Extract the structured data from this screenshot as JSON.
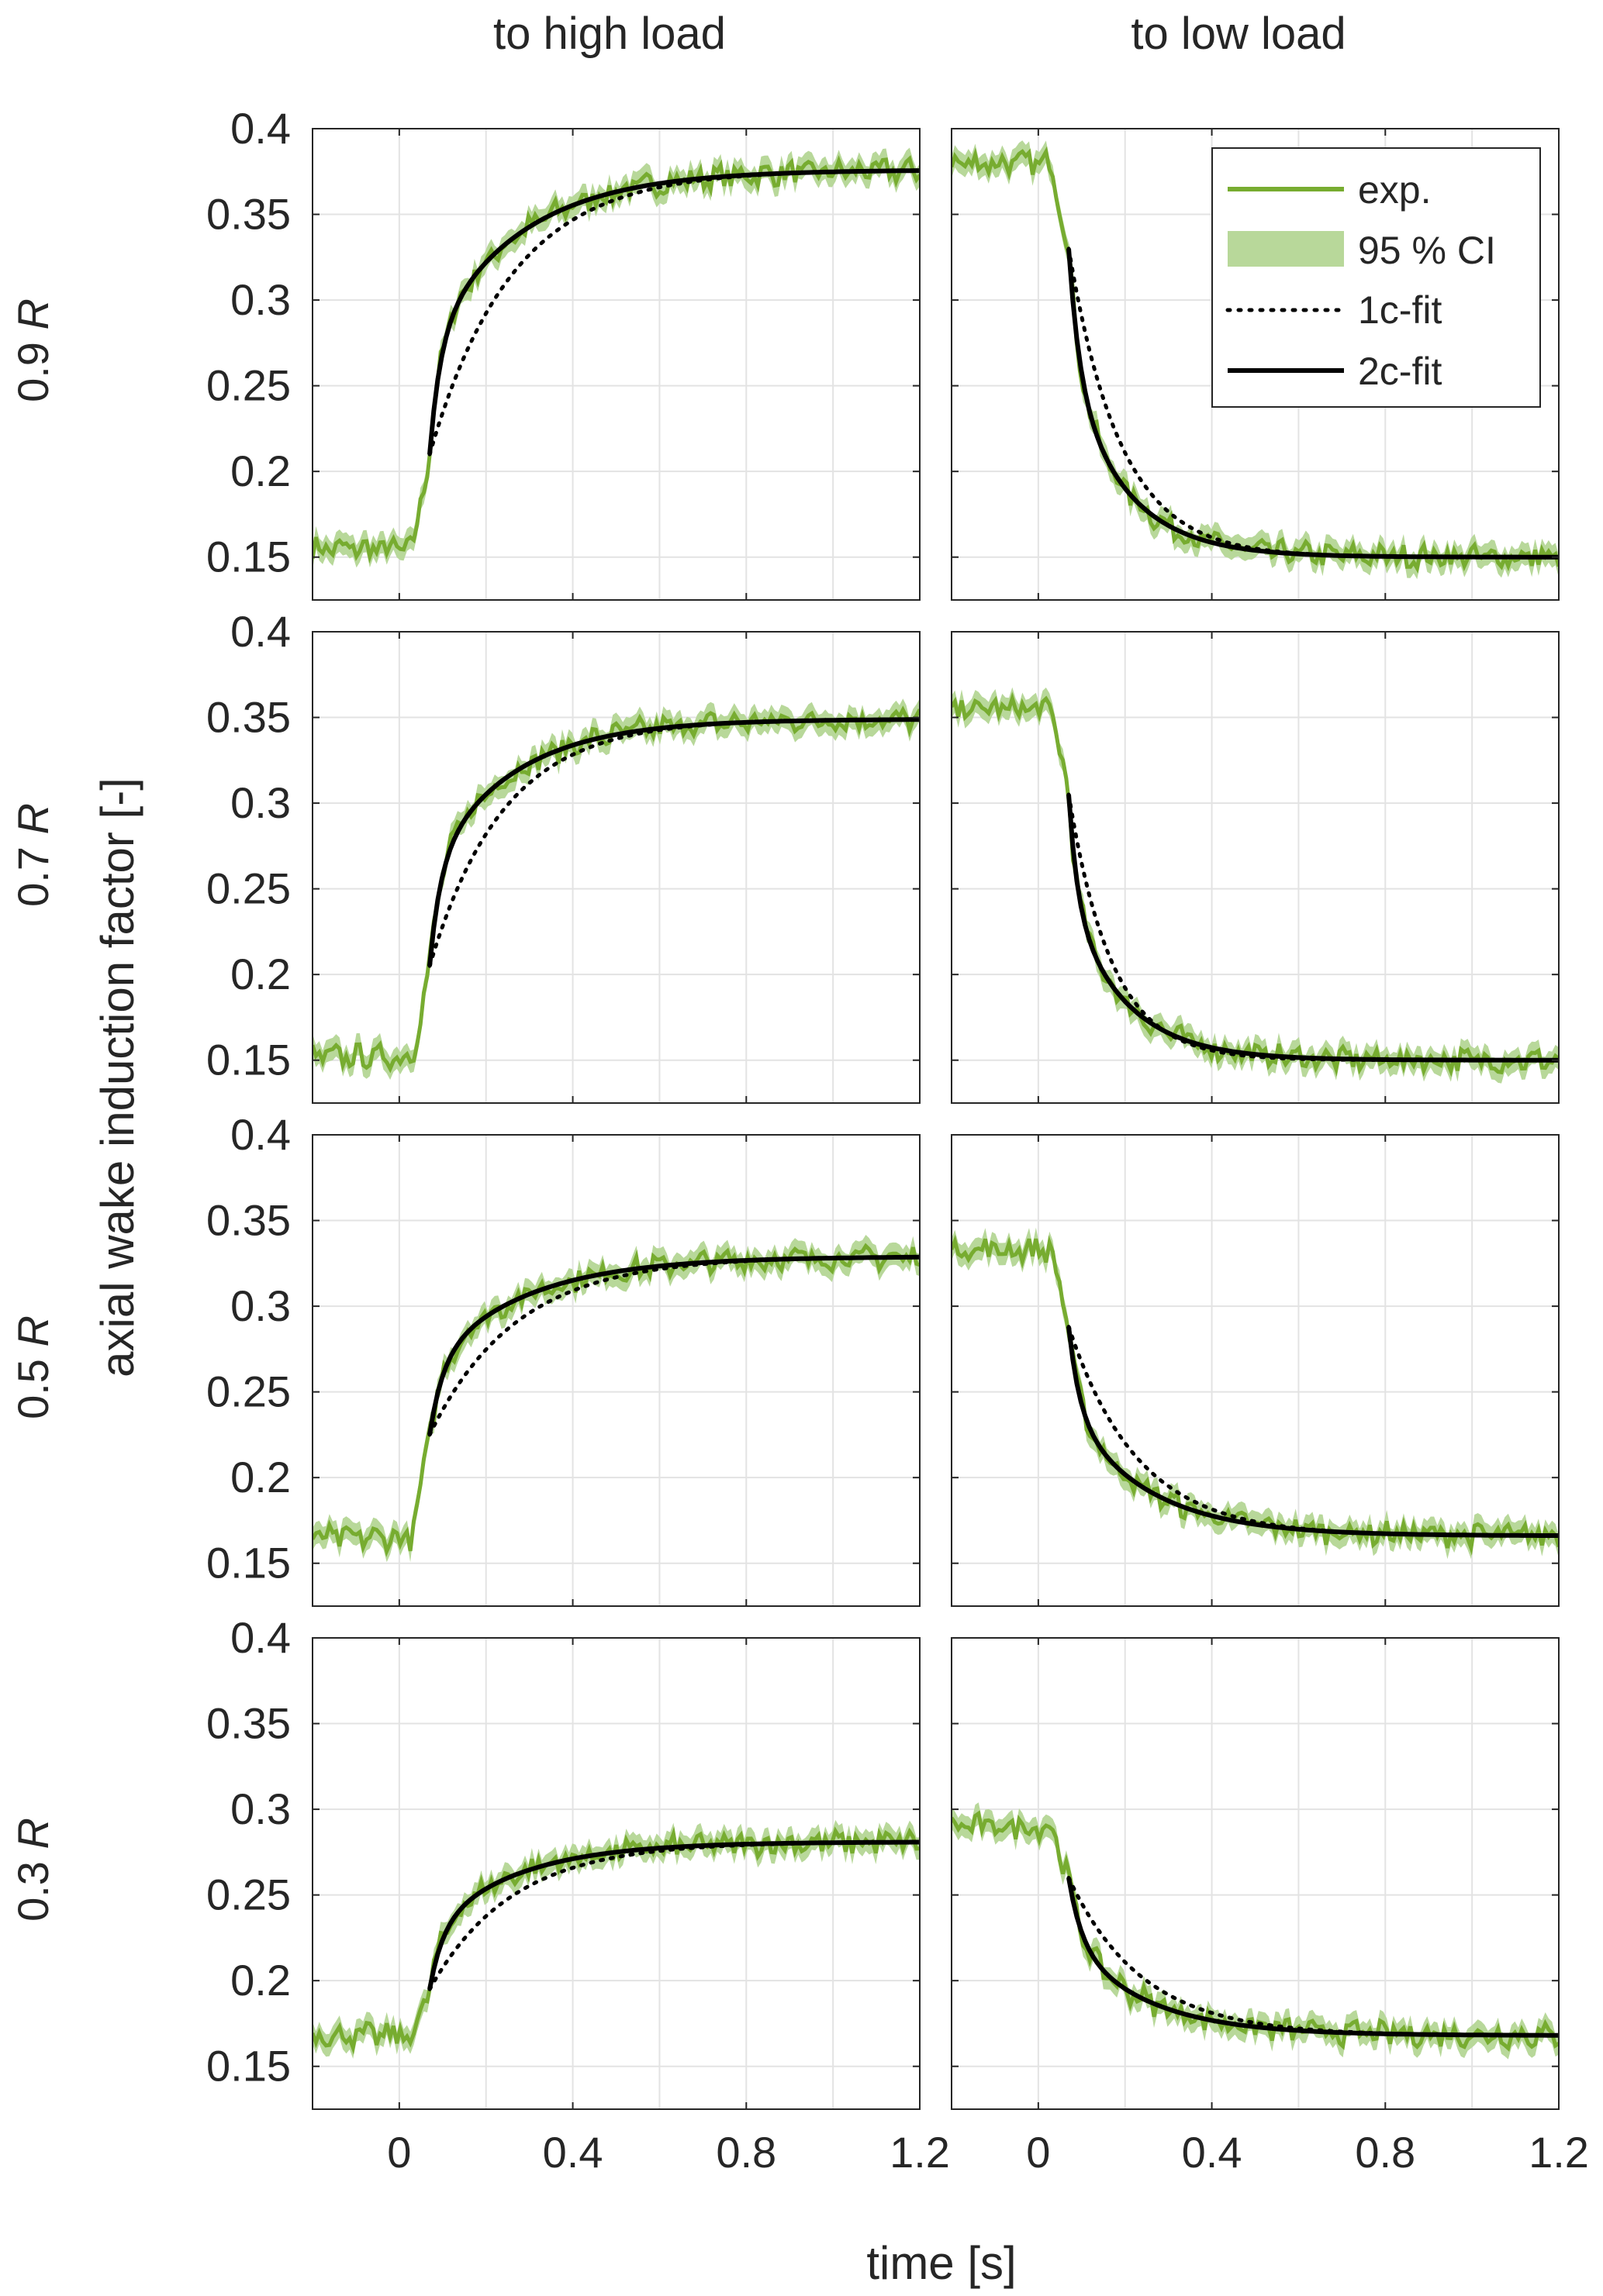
{
  "figure": {
    "col_titles": [
      "to high load",
      "to low load"
    ],
    "row_labels": [
      "0.9 R",
      "0.7 R",
      "0.5 R",
      "0.3 R"
    ],
    "row_label_prefix": [
      "0.9 ",
      "0.7 ",
      "0.5 ",
      "0.3 "
    ],
    "row_label_var": "R",
    "ylabel": "axial wake induction factor [-]",
    "xlabel": "time [s]"
  },
  "legend": {
    "items": [
      {
        "label": "exp.",
        "style": "line",
        "color": "#77AC30"
      },
      {
        "label": "95 % CI",
        "style": "band",
        "color": "#B8D89A"
      },
      {
        "label": "1c-fit",
        "style": "dotted",
        "color": "#000000"
      },
      {
        "label": "2c-fit",
        "style": "solid",
        "color": "#000000"
      }
    ]
  },
  "colors": {
    "exp": "#77AC30",
    "ci": "#B8D89A",
    "fit": "#000000",
    "grid": "#E3E3E3",
    "axis": "#262626"
  },
  "chart_data": [
    {
      "type": "line",
      "row": 0,
      "col": 0,
      "direction": "up",
      "step_time": 0.03,
      "fit_start": 0.07,
      "y_start": 0.155,
      "y_end": 0.376,
      "fit_y_start": 0.21,
      "tau1c": 0.19,
      "tau2c": [
        0.025,
        0.21
      ],
      "xlim": [
        -0.2,
        1.2
      ],
      "ylim": [
        0.125,
        0.4
      ],
      "xticks": [
        0,
        0.4,
        0.8,
        1.2
      ],
      "xticklabels": [
        "0",
        "0.4",
        "0.8",
        "1.2"
      ],
      "yticks": [
        0.15,
        0.2,
        0.25,
        0.3,
        0.35,
        0.4
      ],
      "yticklabels": [
        "0.15",
        "0.2",
        "0.25",
        "0.3",
        "0.35",
        "0.4"
      ],
      "series": [
        {
          "name": "exp."
        },
        {
          "name": "95 % CI"
        },
        {
          "name": "1c-fit"
        },
        {
          "name": "2c-fit"
        }
      ]
    },
    {
      "type": "line",
      "row": 0,
      "col": 1,
      "direction": "down",
      "step_time": 0.03,
      "fit_start": 0.07,
      "y_start": 0.38,
      "y_end": 0.15,
      "fit_y_start": 0.33,
      "tau1c": 0.12,
      "tau2c": [
        0.025,
        0.13
      ],
      "xlim": [
        -0.2,
        1.2
      ],
      "ylim": [
        0.125,
        0.4
      ],
      "xticks": [
        0,
        0.4,
        0.8,
        1.2
      ],
      "xticklabels": [
        "0",
        "0.4",
        "0.8",
        "1.2"
      ],
      "yticks": [
        0.15,
        0.2,
        0.25,
        0.3,
        0.35,
        0.4
      ],
      "yticklabels": [
        "0.15",
        "0.2",
        "0.25",
        "0.3",
        "0.35",
        "0.4"
      ],
      "series": [
        {
          "name": "exp."
        },
        {
          "name": "95 % CI"
        },
        {
          "name": "1c-fit"
        },
        {
          "name": "2c-fit"
        }
      ]
    },
    {
      "type": "line",
      "row": 1,
      "col": 0,
      "direction": "up",
      "step_time": 0.03,
      "fit_start": 0.07,
      "y_start": 0.152,
      "y_end": 0.349,
      "fit_y_start": 0.205,
      "tau1c": 0.17,
      "tau2c": [
        0.025,
        0.19
      ],
      "xlim": [
        -0.2,
        1.2
      ],
      "ylim": [
        0.125,
        0.4
      ],
      "xticks": [
        0,
        0.4,
        0.8,
        1.2
      ],
      "xticklabels": [
        "0",
        "0.4",
        "0.8",
        "1.2"
      ],
      "yticks": [
        0.15,
        0.2,
        0.25,
        0.3,
        0.35,
        0.4
      ],
      "yticklabels": [
        "0.15",
        "0.2",
        "0.25",
        "0.3",
        "0.35",
        "0.4"
      ],
      "series": [
        {
          "name": "exp."
        },
        {
          "name": "95 % CI"
        },
        {
          "name": "1c-fit"
        },
        {
          "name": "2c-fit"
        }
      ]
    },
    {
      "type": "line",
      "row": 1,
      "col": 1,
      "direction": "down",
      "step_time": 0.03,
      "fit_start": 0.07,
      "y_start": 0.355,
      "y_end": 0.15,
      "fit_y_start": 0.305,
      "tau1c": 0.1,
      "tau2c": [
        0.02,
        0.13
      ],
      "xlim": [
        -0.2,
        1.2
      ],
      "ylim": [
        0.125,
        0.4
      ],
      "xticks": [
        0,
        0.4,
        0.8,
        1.2
      ],
      "xticklabels": [
        "0",
        "0.4",
        "0.8",
        "1.2"
      ],
      "yticks": [
        0.15,
        0.2,
        0.25,
        0.3,
        0.35,
        0.4
      ],
      "yticklabels": [
        "0.15",
        "0.2",
        "0.25",
        "0.3",
        "0.35",
        "0.4"
      ],
      "series": [
        {
          "name": "exp."
        },
        {
          "name": "95 % CI"
        },
        {
          "name": "1c-fit"
        },
        {
          "name": "2c-fit"
        }
      ]
    },
    {
      "type": "line",
      "row": 2,
      "col": 0,
      "direction": "up",
      "step_time": 0.03,
      "fit_start": 0.07,
      "y_start": 0.165,
      "y_end": 0.329,
      "fit_y_start": 0.225,
      "tau1c": 0.2,
      "tau2c": [
        0.03,
        0.22
      ],
      "xlim": [
        -0.2,
        1.2
      ],
      "ylim": [
        0.125,
        0.4
      ],
      "xticks": [
        0,
        0.4,
        0.8,
        1.2
      ],
      "xticklabels": [
        "0",
        "0.4",
        "0.8",
        "1.2"
      ],
      "yticks": [
        0.15,
        0.2,
        0.25,
        0.3,
        0.35,
        0.4
      ],
      "yticklabels": [
        "0.15",
        "0.2",
        "0.25",
        "0.3",
        "0.35",
        "0.4"
      ],
      "series": [
        {
          "name": "exp."
        },
        {
          "name": "95 % CI"
        },
        {
          "name": "1c-fit"
        },
        {
          "name": "2c-fit"
        }
      ]
    },
    {
      "type": "line",
      "row": 2,
      "col": 1,
      "direction": "down",
      "step_time": 0.03,
      "fit_start": 0.07,
      "y_start": 0.333,
      "y_end": 0.166,
      "fit_y_start": 0.288,
      "tau1c": 0.16,
      "tau2c": [
        0.025,
        0.18
      ],
      "xlim": [
        -0.2,
        1.2
      ],
      "ylim": [
        0.125,
        0.4
      ],
      "xticks": [
        0,
        0.4,
        0.8,
        1.2
      ],
      "xticklabels": [
        "0",
        "0.4",
        "0.8",
        "1.2"
      ],
      "yticks": [
        0.15,
        0.2,
        0.25,
        0.3,
        0.35,
        0.4
      ],
      "yticklabels": [
        "0.15",
        "0.2",
        "0.25",
        "0.3",
        "0.35",
        "0.4"
      ],
      "series": [
        {
          "name": "exp."
        },
        {
          "name": "95 % CI"
        },
        {
          "name": "1c-fit"
        },
        {
          "name": "2c-fit"
        }
      ]
    },
    {
      "type": "line",
      "row": 3,
      "col": 0,
      "direction": "up",
      "step_time": 0.03,
      "fit_start": 0.07,
      "y_start": 0.168,
      "y_end": 0.281,
      "fit_y_start": 0.195,
      "tau1c": 0.19,
      "tau2c": [
        0.03,
        0.2
      ],
      "xlim": [
        -0.2,
        1.2
      ],
      "ylim": [
        0.125,
        0.4
      ],
      "xticks": [
        0,
        0.4,
        0.8,
        1.2
      ],
      "xticklabels": [
        "0",
        "0.4",
        "0.8",
        "1.2"
      ],
      "yticks": [
        0.15,
        0.2,
        0.25,
        0.3,
        0.35,
        0.4
      ],
      "yticklabels": [
        "0.15",
        "0.2",
        "0.25",
        "0.3",
        "0.35",
        "0.4"
      ],
      "series": [
        {
          "name": "exp."
        },
        {
          "name": "95 % CI"
        },
        {
          "name": "1c-fit"
        },
        {
          "name": "2c-fit"
        }
      ]
    },
    {
      "type": "line",
      "row": 3,
      "col": 1,
      "direction": "down",
      "step_time": 0.03,
      "fit_start": 0.07,
      "y_start": 0.29,
      "y_end": 0.168,
      "fit_y_start": 0.26,
      "tau1c": 0.17,
      "tau2c": [
        0.03,
        0.18
      ],
      "xlim": [
        -0.2,
        1.2
      ],
      "ylim": [
        0.125,
        0.4
      ],
      "xticks": [
        0,
        0.4,
        0.8,
        1.2
      ],
      "xticklabels": [
        "0",
        "0.4",
        "0.8",
        "1.2"
      ],
      "yticks": [
        0.15,
        0.2,
        0.25,
        0.3,
        0.35,
        0.4
      ],
      "yticklabels": [
        "0.15",
        "0.2",
        "0.25",
        "0.3",
        "0.35",
        "0.4"
      ],
      "series": [
        {
          "name": "exp."
        },
        {
          "name": "95 % CI"
        },
        {
          "name": "1c-fit"
        },
        {
          "name": "2c-fit"
        }
      ]
    }
  ]
}
